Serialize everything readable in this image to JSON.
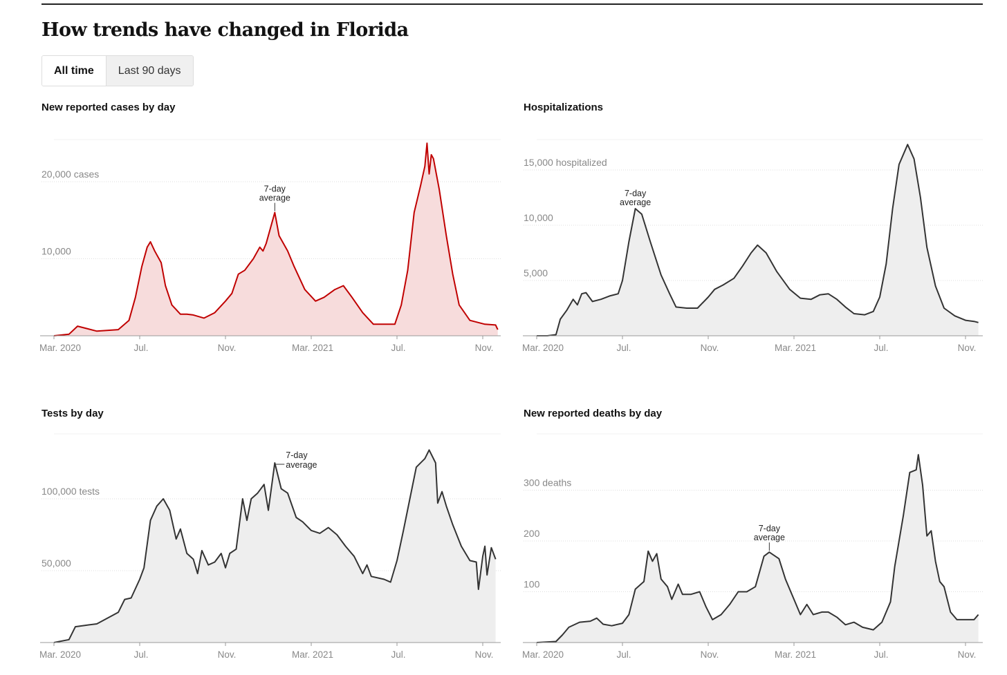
{
  "header": {
    "title": "How trends have changed in Florida"
  },
  "tabs": [
    {
      "label": "All time",
      "active": true
    },
    {
      "label": "Last 90 days",
      "active": false
    }
  ],
  "annotation": {
    "line1": "7-day",
    "line2": "average"
  },
  "chart_data": [
    {
      "type": "area",
      "title": "New reported cases by day",
      "color": "#c00000",
      "fill": "#f7dcdc",
      "x_unit": "months since Mar. 2020",
      "yticks": [
        {
          "value": 20000,
          "label": "20,000 cases"
        },
        {
          "value": 10000,
          "label": "10,000"
        }
      ],
      "xticks": [
        {
          "x": 0,
          "label": "Mar. 2020"
        },
        {
          "x": 4,
          "label": "Jul."
        },
        {
          "x": 8,
          "label": "Nov."
        },
        {
          "x": 12,
          "label": "Mar. 2021"
        },
        {
          "x": 16,
          "label": "Jul."
        },
        {
          "x": 20,
          "label": "Nov."
        }
      ],
      "annotation_x": 10.3,
      "x": [
        0,
        0.7,
        1.1,
        2.0,
        3.0,
        3.5,
        3.8,
        4.1,
        4.35,
        4.5,
        4.7,
        5.0,
        5.2,
        5.5,
        5.9,
        6.2,
        6.5,
        7.0,
        7.5,
        8.0,
        8.3,
        8.6,
        8.9,
        9.3,
        9.6,
        9.75,
        9.9,
        10.3,
        10.5,
        10.9,
        11.2,
        11.7,
        12.2,
        12.6,
        13.1,
        13.5,
        13.9,
        14.4,
        14.9,
        15.9,
        16.2,
        16.5,
        16.8,
        17.1,
        17.3,
        17.4,
        17.5,
        17.6,
        17.7,
        17.97,
        18.3,
        18.6,
        18.9,
        19.4,
        20.1,
        20.6,
        20.7
      ],
      "values": [
        0,
        200,
        1250,
        600,
        800,
        2000,
        5000,
        9000,
        11500,
        12200,
        11000,
        9500,
        6500,
        4000,
        2800,
        2800,
        2700,
        2300,
        3000,
        4500,
        5500,
        8000,
        8500,
        10000,
        11500,
        11000,
        12000,
        16000,
        13000,
        11000,
        9000,
        6000,
        4500,
        5000,
        6000,
        6500,
        5000,
        3000,
        1500,
        1500,
        4000,
        8500,
        16000,
        19500,
        22000,
        25000,
        21000,
        23500,
        23000,
        19000,
        13000,
        8000,
        4000,
        2000,
        1500,
        1400,
        800
      ]
    },
    {
      "type": "area",
      "title": "Hospitalizations",
      "color": "#333333",
      "fill": "#eeeeee",
      "x_unit": "months since Mar. 2020",
      "yticks": [
        {
          "value": 15000,
          "label": "15,000 hospitalized"
        },
        {
          "value": 10000,
          "label": "10,000"
        },
        {
          "value": 5000,
          "label": "5,000"
        }
      ],
      "xticks": [
        {
          "x": 0,
          "label": "Mar. 2020"
        },
        {
          "x": 4,
          "label": "Jul."
        },
        {
          "x": 8,
          "label": "Nov."
        },
        {
          "x": 12,
          "label": "Mar. 2021"
        },
        {
          "x": 16,
          "label": "Jul."
        },
        {
          "x": 20,
          "label": "Nov."
        }
      ],
      "annotation_x": 4.6,
      "x": [
        0,
        0.5,
        0.9,
        1.1,
        1.4,
        1.7,
        1.9,
        2.1,
        2.3,
        2.6,
        3.0,
        3.4,
        3.8,
        4.0,
        4.3,
        4.6,
        4.9,
        5.3,
        5.8,
        6.2,
        6.5,
        7.0,
        7.5,
        8.0,
        8.3,
        8.7,
        9.2,
        9.6,
        10.0,
        10.3,
        10.7,
        11.2,
        11.8,
        12.3,
        12.8,
        13.2,
        13.6,
        14.0,
        14.4,
        14.8,
        15.3,
        15.7,
        16.0,
        16.3,
        16.6,
        16.9,
        17.3,
        17.6,
        17.9,
        18.2,
        18.6,
        19.0,
        19.5,
        20.0,
        20.4,
        20.6
      ],
      "values": [
        0,
        0,
        100,
        1500,
        2300,
        3300,
        2800,
        3800,
        3900,
        3100,
        3300,
        3600,
        3800,
        5000,
        8500,
        11500,
        11000,
        8500,
        5500,
        3800,
        2600,
        2500,
        2500,
        3500,
        4200,
        4600,
        5200,
        6300,
        7500,
        8200,
        7500,
        5800,
        4200,
        3400,
        3300,
        3700,
        3800,
        3300,
        2600,
        2000,
        1900,
        2200,
        3500,
        6500,
        11500,
        15500,
        17300,
        16000,
        12500,
        8000,
        4500,
        2500,
        1800,
        1400,
        1300,
        1200
      ]
    },
    {
      "type": "area",
      "title": "Tests by day",
      "color": "#333333",
      "fill": "#eeeeee",
      "x_unit": "months since Mar. 2020",
      "yticks": [
        {
          "value": 100000,
          "label": "100,000 tests"
        },
        {
          "value": 50000,
          "label": "50,000"
        }
      ],
      "xticks": [
        {
          "x": 0,
          "label": "Mar. 2020"
        },
        {
          "x": 4,
          "label": "Jul."
        },
        {
          "x": 8,
          "label": "Nov."
        },
        {
          "x": 12,
          "label": "Mar. 2021"
        },
        {
          "x": 16,
          "label": "Jul."
        },
        {
          "x": 20,
          "label": "Nov."
        }
      ],
      "annotation_x": 10.3,
      "x": [
        0,
        0.7,
        1.0,
        1.5,
        2.0,
        2.5,
        3.0,
        3.3,
        3.6,
        4.0,
        4.2,
        4.5,
        4.8,
        5.1,
        5.4,
        5.7,
        5.9,
        6.2,
        6.5,
        6.7,
        6.9,
        7.2,
        7.5,
        7.8,
        8.0,
        8.2,
        8.5,
        8.8,
        9.0,
        9.2,
        9.5,
        9.8,
        10.0,
        10.3,
        10.6,
        10.9,
        11.3,
        11.6,
        12.0,
        12.4,
        12.8,
        13.2,
        13.6,
        14.0,
        14.4,
        14.6,
        14.8,
        15.4,
        15.7,
        16.0,
        16.3,
        16.6,
        16.9,
        17.3,
        17.5,
        17.8,
        17.9,
        18.1,
        18.3,
        18.6,
        19.0,
        19.4,
        19.7,
        19.8,
        20.0,
        20.1,
        20.2,
        20.4,
        20.6
      ],
      "values": [
        0,
        2000,
        11000,
        12000,
        13000,
        17000,
        21000,
        30000,
        31000,
        44000,
        52000,
        85000,
        95000,
        100000,
        92000,
        72000,
        79000,
        62000,
        58000,
        48000,
        64000,
        54000,
        56000,
        62000,
        52000,
        62000,
        65000,
        100000,
        85000,
        100000,
        104000,
        110000,
        92000,
        125000,
        107000,
        104000,
        87000,
        84000,
        78000,
        76000,
        80000,
        75000,
        67000,
        60000,
        48000,
        54000,
        46000,
        44000,
        42000,
        57000,
        78000,
        100000,
        122000,
        128000,
        134000,
        125000,
        97000,
        105000,
        95000,
        82000,
        67000,
        57000,
        56000,
        37000,
        60000,
        67000,
        47000,
        66000,
        58000
      ]
    },
    {
      "type": "area",
      "title": "New reported deaths by day",
      "color": "#333333",
      "fill": "#eeeeee",
      "x_unit": "months since Mar. 2020",
      "yticks": [
        {
          "value": 300,
          "label": "300 deaths"
        },
        {
          "value": 200,
          "label": "200"
        },
        {
          "value": 100,
          "label": "100"
        }
      ],
      "xticks": [
        {
          "x": 0,
          "label": "Mar. 2020"
        },
        {
          "x": 4,
          "label": "Jul."
        },
        {
          "x": 8,
          "label": "Nov."
        },
        {
          "x": 12,
          "label": "Mar. 2021"
        },
        {
          "x": 16,
          "label": "Jul."
        },
        {
          "x": 20,
          "label": "Nov."
        }
      ],
      "annotation_x": 10.85,
      "x": [
        0,
        0.9,
        1.2,
        1.5,
        2.0,
        2.5,
        2.8,
        3.1,
        3.5,
        4.0,
        4.3,
        4.6,
        5.0,
        5.2,
        5.4,
        5.6,
        5.8,
        6.1,
        6.3,
        6.6,
        6.8,
        7.2,
        7.6,
        7.9,
        8.2,
        8.6,
        9.0,
        9.4,
        9.8,
        10.2,
        10.6,
        10.85,
        11.3,
        11.6,
        12.0,
        12.3,
        12.6,
        12.9,
        13.3,
        13.6,
        14.0,
        14.4,
        14.8,
        15.2,
        15.7,
        16.1,
        16.5,
        16.7,
        16.9,
        17.1,
        17.4,
        17.7,
        17.8,
        18.0,
        18.2,
        18.4,
        18.6,
        18.8,
        19.0,
        19.3,
        19.6,
        20.4,
        20.6
      ],
      "values": [
        0,
        2,
        15,
        30,
        40,
        42,
        48,
        36,
        33,
        38,
        55,
        105,
        120,
        180,
        160,
        175,
        125,
        110,
        85,
        115,
        95,
        95,
        100,
        70,
        45,
        55,
        75,
        100,
        100,
        110,
        170,
        178,
        165,
        125,
        85,
        55,
        75,
        55,
        60,
        60,
        50,
        35,
        40,
        30,
        25,
        40,
        80,
        150,
        200,
        250,
        335,
        340,
        370,
        310,
        210,
        220,
        160,
        120,
        110,
        60,
        45,
        45,
        55
      ]
    }
  ]
}
